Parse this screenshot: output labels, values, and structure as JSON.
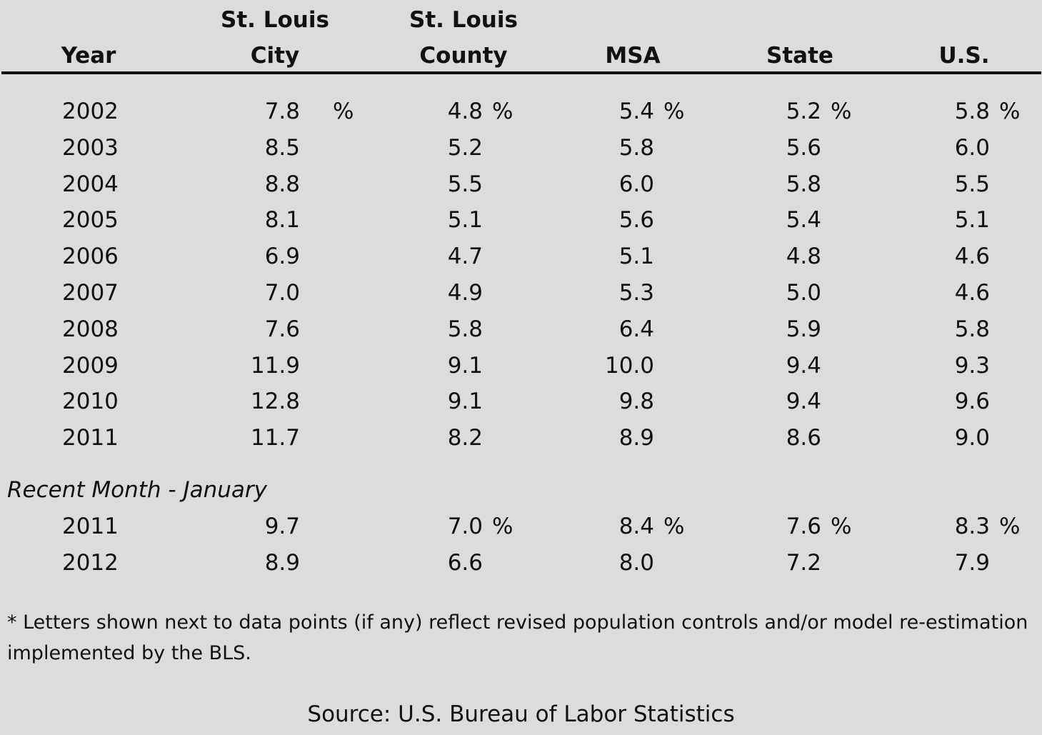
{
  "headers": {
    "year": "Year",
    "city_line1": "St. Louis",
    "city_line2": "City",
    "county_line1": "St. Louis",
    "county_line2": "County",
    "msa": "MSA",
    "state": "State",
    "us": "U.S."
  },
  "annual_rows": [
    {
      "year": "2002",
      "city": "7.8",
      "county": "4.8",
      "msa": "5.4",
      "state": "5.2",
      "us": "5.8",
      "pct": "%"
    },
    {
      "year": "2003",
      "city": "8.5",
      "county": "5.2",
      "msa": "5.8",
      "state": "5.6",
      "us": "6.0",
      "pct": ""
    },
    {
      "year": "2004",
      "city": "8.8",
      "county": "5.5",
      "msa": "6.0",
      "state": "5.8",
      "us": "5.5",
      "pct": ""
    },
    {
      "year": "2005",
      "city": "8.1",
      "county": "5.1",
      "msa": "5.6",
      "state": "5.4",
      "us": "5.1",
      "pct": ""
    },
    {
      "year": "2006",
      "city": "6.9",
      "county": "4.7",
      "msa": "5.1",
      "state": "4.8",
      "us": "4.6",
      "pct": ""
    },
    {
      "year": "2007",
      "city": "7.0",
      "county": "4.9",
      "msa": "5.3",
      "state": "5.0",
      "us": "4.6",
      "pct": ""
    },
    {
      "year": "2008",
      "city": "7.6",
      "county": "5.8",
      "msa": "6.4",
      "state": "5.9",
      "us": "5.8",
      "pct": ""
    },
    {
      "year": "2009",
      "city": "11.9",
      "county": "9.1",
      "msa": "10.0",
      "state": "9.4",
      "us": "9.3",
      "pct": ""
    },
    {
      "year": "2010",
      "city": "12.8",
      "county": "9.1",
      "msa": "9.8",
      "state": "9.4",
      "us": "9.6",
      "pct": ""
    },
    {
      "year": "2011",
      "city": "11.7",
      "county": "8.2",
      "msa": "8.9",
      "state": "8.6",
      "us": "9.0",
      "pct": ""
    }
  ],
  "recent_section_label": "Recent Month - January",
  "recent_rows": [
    {
      "year": "2011",
      "city": "9.7",
      "county": "7.0",
      "msa": "8.4",
      "state": "7.6",
      "us": "8.3",
      "pct": "%"
    },
    {
      "year": "2012",
      "city": "8.9",
      "county": "6.6",
      "msa": "8.0",
      "state": "7.2",
      "us": "7.9",
      "pct": ""
    }
  ],
  "city_pct_2002": "%",
  "footnote": "* Letters shown next to data points (if any) reflect revised population controls and/or model re-estimation implemented by the BLS.",
  "source": "Source: U.S. Bureau of Labor Statistics"
}
